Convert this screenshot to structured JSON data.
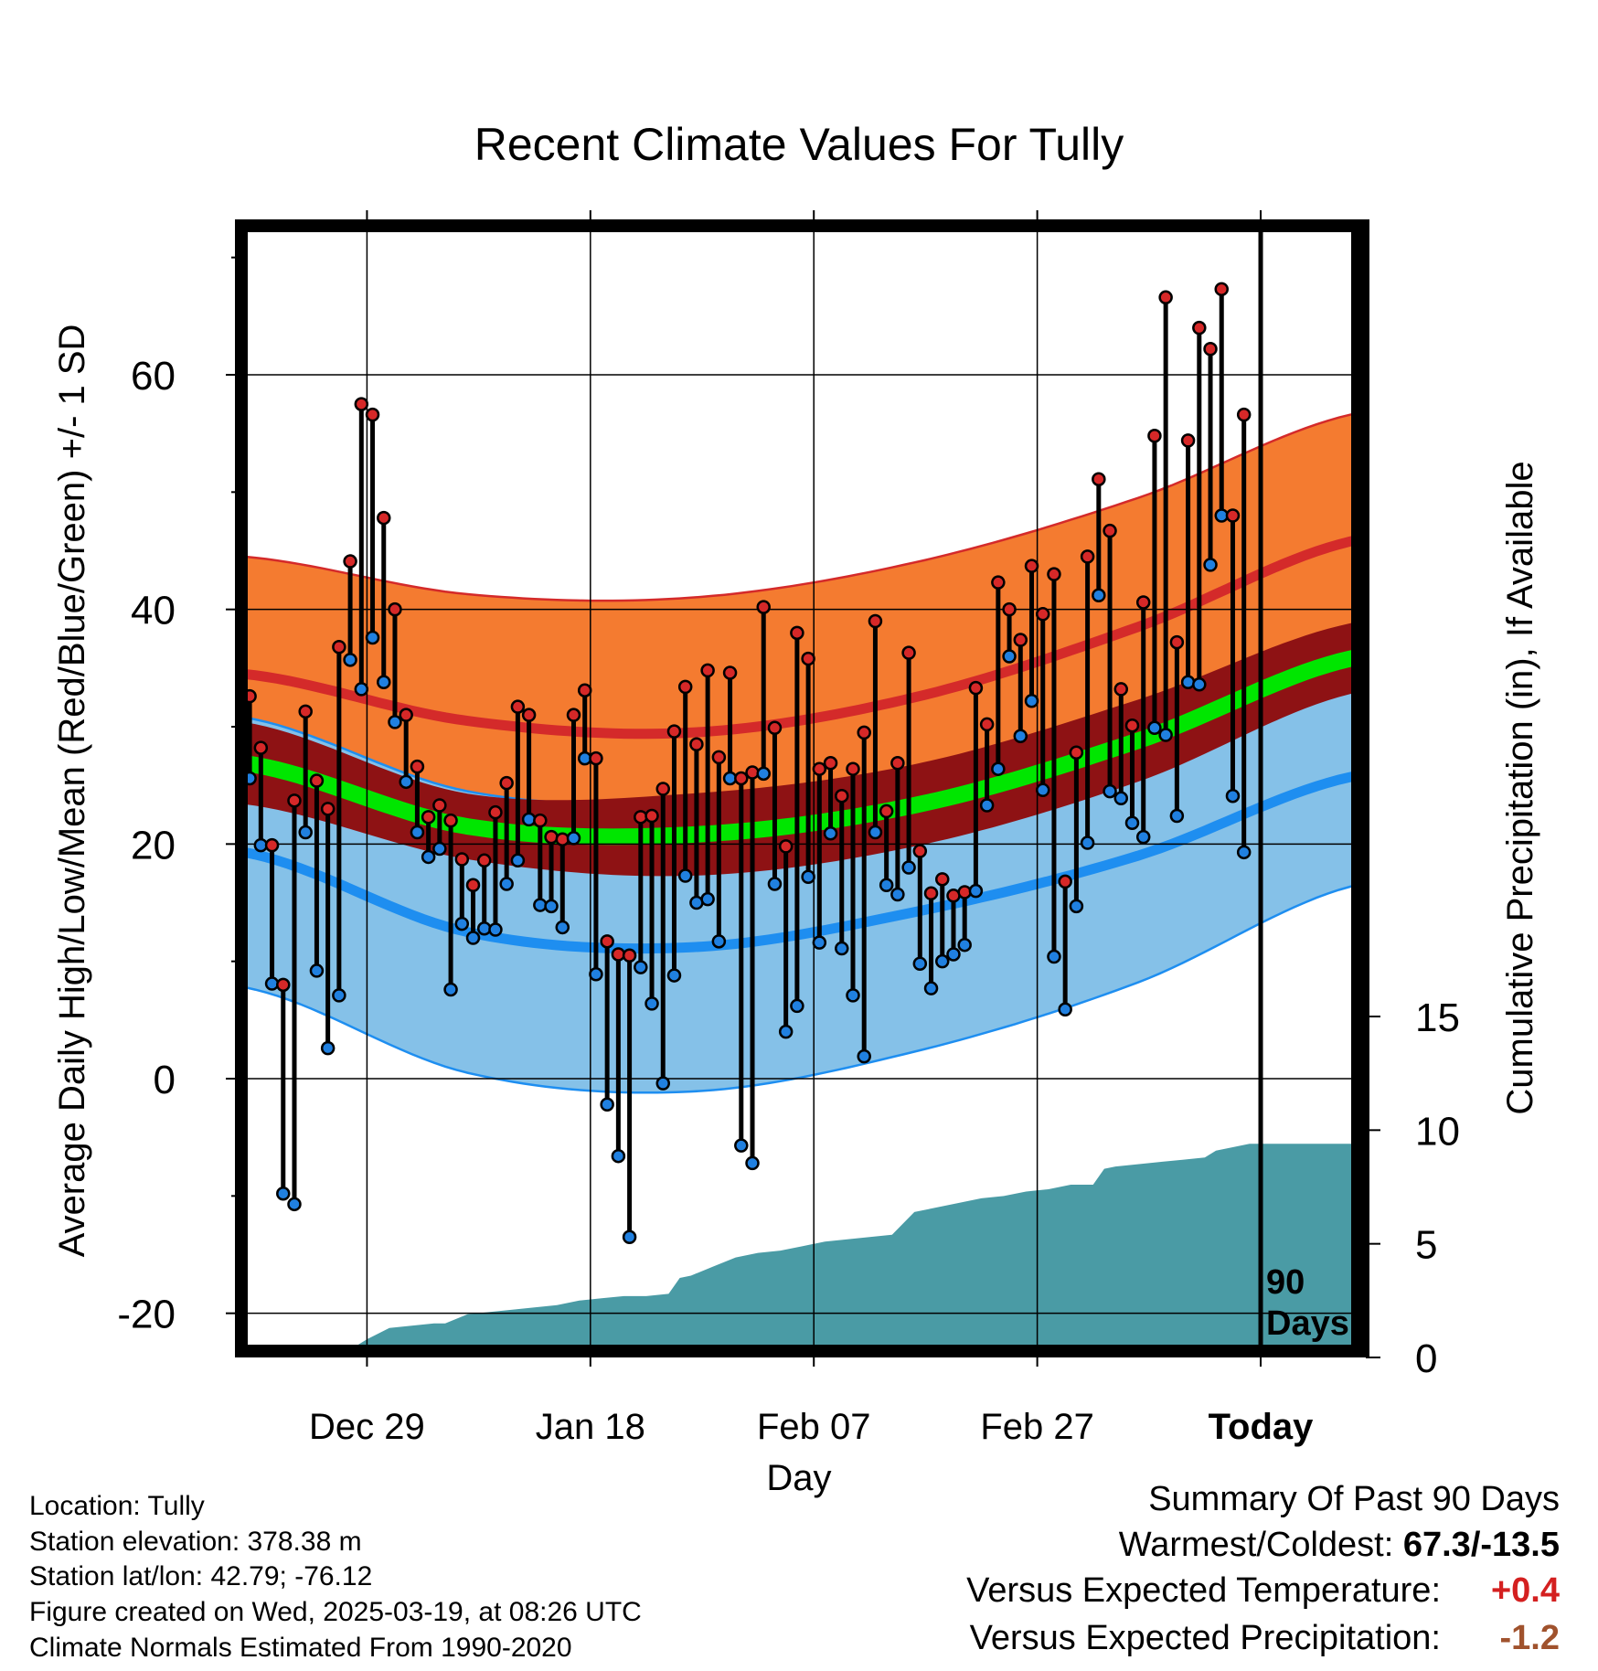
{
  "chart_data": {
    "type": "line",
    "title": "Recent Climate Values For Tully",
    "xlabel": "Day",
    "ylabel_left": "Average Daily High/Low/Mean (Red/Blue/Green) +/- 1 SD",
    "ylabel_right": "Cumulative Precipitation (in), If Available",
    "x_tick_labels": [
      "Dec 29",
      "Jan 18",
      "Feb 07",
      "Feb 27",
      "Today"
    ],
    "x_tick_days": [
      11,
      31,
      51,
      71,
      91
    ],
    "y_ticks_left": [
      -20,
      0,
      20,
      40,
      60
    ],
    "y_ticks_right": [
      0,
      5,
      10,
      15
    ],
    "ylim_left": [
      -23,
      72
    ],
    "ylim_right": [
      0,
      44
    ],
    "xlim": [
      0,
      100
    ],
    "today_marker_label": [
      "90",
      "Days"
    ],
    "colors": {
      "high_band": "#f47b30",
      "high_line": "#d42a2a",
      "mean_band": "#8e1214",
      "mean_line": "#00e600",
      "low_band": "#85c1e8",
      "low_line": "#1e8ef0",
      "precip": "#4a9ba5",
      "high_dot": "#d62828",
      "low_dot": "#2080e0"
    },
    "normals": {
      "days": [
        0,
        20,
        40,
        60,
        80,
        100
      ],
      "high_mean": [
        34.5,
        30.5,
        29.5,
        32.5,
        38.5,
        46.0
      ],
      "high_sd": [
        10.0,
        10.8,
        11.5,
        11.5,
        11.0,
        10.8
      ],
      "low_mean": [
        19.3,
        12.5,
        11.2,
        14.2,
        19.0,
        25.9
      ],
      "low_sd": [
        11.5,
        12.0,
        12.3,
        11.9,
        10.8,
        9.3
      ],
      "mean_mean": [
        26.9,
        21.5,
        20.8,
        23.3,
        28.8,
        36.0
      ],
      "mean_sd": [
        3.5,
        2.8,
        3.5,
        3.5,
        3.5,
        3.0
      ]
    },
    "series": [
      {
        "name": "High",
        "x": [
          0,
          1,
          2,
          3,
          4,
          5,
          6,
          7,
          8,
          9,
          10,
          11,
          12,
          13,
          14,
          15,
          16,
          17,
          18,
          19,
          20,
          21,
          22,
          23,
          24,
          25,
          26,
          27,
          28,
          29,
          30,
          31,
          32,
          33,
          34,
          35,
          36,
          37,
          38,
          39,
          40,
          41,
          42,
          43,
          44,
          45,
          46,
          47,
          48,
          49,
          50,
          51,
          52,
          53,
          54,
          55,
          56,
          57,
          58,
          59,
          60,
          61,
          62,
          63,
          64,
          65,
          66,
          67,
          68,
          69,
          70,
          71,
          72,
          73,
          74,
          75,
          76,
          77,
          78,
          79,
          80,
          81,
          82,
          83,
          84,
          85,
          86,
          87,
          88,
          89
        ],
        "values": [
          32.6,
          28.2,
          19.9,
          8.0,
          23.7,
          31.3,
          25.4,
          23.0,
          36.8,
          44.1,
          57.5,
          56.6,
          47.8,
          40.0,
          31.0,
          26.6,
          22.3,
          23.3,
          22.0,
          18.7,
          16.5,
          18.6,
          22.7,
          25.2,
          31.7,
          31.0,
          22.0,
          20.6,
          20.4,
          31.0,
          33.1,
          27.3,
          11.7,
          10.6,
          10.5,
          22.3,
          22.4,
          24.7,
          29.6,
          33.4,
          28.5,
          34.8,
          27.4,
          34.6,
          25.6,
          26.1,
          40.2,
          29.9,
          19.8,
          38.0,
          35.8,
          26.4,
          26.9,
          24.1,
          26.4,
          29.5,
          39.0,
          22.8,
          26.9,
          36.3,
          19.4,
          15.8,
          17.0,
          15.6,
          15.9,
          33.3,
          30.2,
          42.3,
          40.0,
          37.4,
          43.7,
          39.6,
          43.0,
          16.8,
          27.8,
          44.5,
          51.1,
          46.7,
          33.2,
          30.1,
          40.6,
          54.8,
          66.6,
          37.2,
          54.4,
          64.0,
          62.2,
          67.3,
          48.0,
          56.6
        ]
      },
      {
        "name": "Low",
        "x": [
          0,
          1,
          2,
          3,
          4,
          5,
          6,
          7,
          8,
          9,
          10,
          11,
          12,
          13,
          14,
          15,
          16,
          17,
          18,
          19,
          20,
          21,
          22,
          23,
          24,
          25,
          26,
          27,
          28,
          29,
          30,
          31,
          32,
          33,
          34,
          35,
          36,
          37,
          38,
          39,
          40,
          41,
          42,
          43,
          44,
          45,
          46,
          47,
          48,
          49,
          50,
          51,
          52,
          53,
          54,
          55,
          56,
          57,
          58,
          59,
          60,
          61,
          62,
          63,
          64,
          65,
          66,
          67,
          68,
          69,
          70,
          71,
          72,
          73,
          74,
          75,
          76,
          77,
          78,
          79,
          80,
          81,
          82,
          83,
          84,
          85,
          86,
          87,
          88,
          89
        ],
        "values": [
          25.6,
          19.9,
          8.1,
          -9.8,
          -10.7,
          21.0,
          9.2,
          2.6,
          7.1,
          35.7,
          33.2,
          37.6,
          33.8,
          30.4,
          25.3,
          21.0,
          18.9,
          19.6,
          7.6,
          13.2,
          12.0,
          12.8,
          12.7,
          16.6,
          18.6,
          22.1,
          14.8,
          14.7,
          12.9,
          20.5,
          27.3,
          8.9,
          -2.2,
          -6.6,
          -13.5,
          9.5,
          6.4,
          -0.4,
          8.8,
          17.3,
          15.0,
          15.3,
          11.7,
          25.6,
          -5.7,
          -7.2,
          26.0,
          16.6,
          4.0,
          6.2,
          17.2,
          11.6,
          20.9,
          11.1,
          7.1,
          1.9,
          21.0,
          16.5,
          15.7,
          18.0,
          9.8,
          7.7,
          10.0,
          10.6,
          11.4,
          16.0,
          23.3,
          26.4,
          36.0,
          29.2,
          32.2,
          24.6,
          10.4,
          5.9,
          14.7,
          20.1,
          41.2,
          24.5,
          23.9,
          21.8,
          20.6,
          29.9,
          29.3,
          22.4,
          33.8,
          33.6,
          43.8,
          48.0,
          24.1,
          19.3
        ]
      },
      {
        "name": "Cumulative Precipitation",
        "x": [
          0,
          4,
          5,
          9,
          10,
          11,
          13,
          15,
          17,
          18,
          19,
          20,
          22,
          24,
          26,
          28,
          30,
          32,
          34,
          36,
          38,
          39,
          40,
          42,
          44,
          46,
          48,
          50,
          52,
          54,
          56,
          58,
          60,
          62,
          64,
          66,
          68,
          70,
          72,
          74,
          76,
          77,
          78,
          80,
          82,
          84,
          86,
          87,
          88,
          90,
          100
        ],
        "values": [
          0,
          0,
          0.3,
          0.3,
          0.5,
          0.8,
          1.3,
          1.4,
          1.5,
          1.5,
          1.7,
          1.9,
          2.0,
          2.1,
          2.2,
          2.3,
          2.5,
          2.6,
          2.7,
          2.7,
          2.8,
          3.5,
          3.6,
          4.0,
          4.4,
          4.6,
          4.7,
          4.9,
          5.1,
          5.2,
          5.3,
          5.4,
          6.4,
          6.6,
          6.8,
          7.0,
          7.1,
          7.3,
          7.4,
          7.6,
          7.6,
          8.3,
          8.4,
          8.5,
          8.6,
          8.7,
          8.8,
          9.1,
          9.2,
          9.4,
          9.4
        ]
      }
    ]
  },
  "info": {
    "location": "Location: Tully",
    "elevation": "Station elevation: 378.38 m",
    "latlon": "Station lat/lon: 42.79; -76.12",
    "created": "Figure created on Wed, 2025-03-19, at 08:26 UTC",
    "normals": "Climate Normals Estimated From 1990-2020"
  },
  "summary": {
    "heading": "Summary Of Past 90 Days",
    "warm_cold_label": "Warmest/Coldest: ",
    "warm_cold_value": "67.3/-13.5",
    "temp_label": "Versus Expected Temperature:",
    "temp_value": "+0.4",
    "precip_label": "Versus Expected Precipitation:",
    "precip_value": "-1.2"
  }
}
